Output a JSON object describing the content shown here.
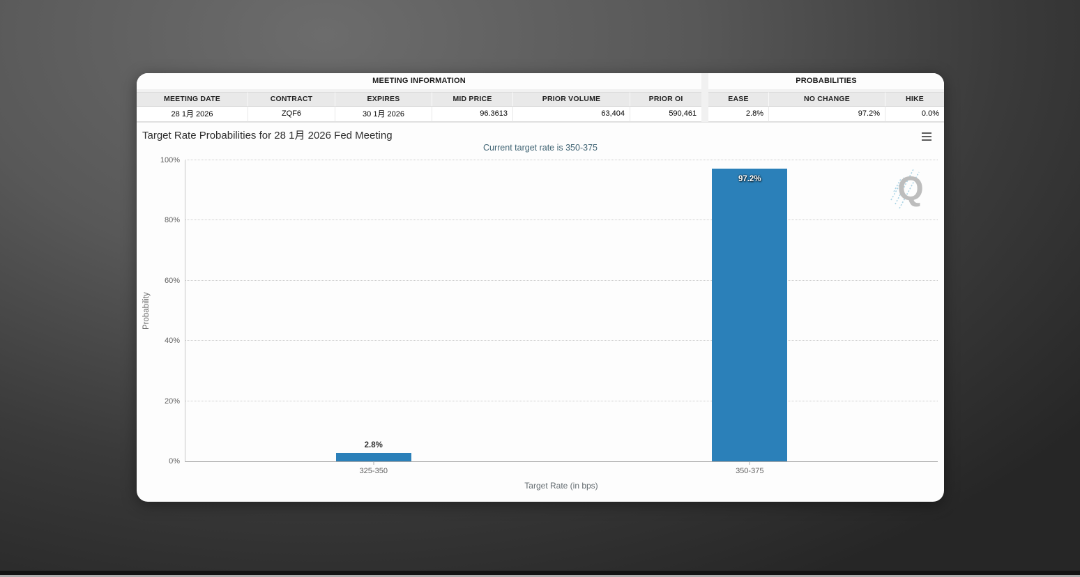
{
  "meeting_info": {
    "section_title": "MEETING INFORMATION",
    "headers": [
      "MEETING DATE",
      "CONTRACT",
      "EXPIRES",
      "MID PRICE",
      "PRIOR VOLUME",
      "PRIOR OI"
    ],
    "values": [
      "28 1月 2026",
      "ZQF6",
      "30 1月 2026",
      "96.3613",
      "63,404",
      "590,461"
    ]
  },
  "probabilities": {
    "section_title": "PROBABILITIES",
    "headers": [
      "EASE",
      "NO CHANGE",
      "HIKE"
    ],
    "values": [
      "2.8%",
      "97.2%",
      "0.0%"
    ]
  },
  "chart": {
    "menu_icon": "hamburger-icon"
  },
  "chart_data": {
    "type": "bar",
    "title": "Target Rate Probabilities for 28 1月 2026 Fed Meeting",
    "subtitle": "Current target rate is 350-375",
    "categories": [
      "325-350",
      "350-375"
    ],
    "values": [
      2.8,
      97.2
    ],
    "data_labels": [
      "2.8%",
      "97.2%"
    ],
    "xlabel": "Target Rate (in bps)",
    "ylabel": "Probability",
    "ylim": [
      0,
      100
    ],
    "ytick_step": 20,
    "ytick_suffix": "%",
    "bar_color": "#2b80b9",
    "grid": "horizontal-dotted",
    "legend": "none"
  },
  "watermark": {
    "letter": "Q"
  }
}
